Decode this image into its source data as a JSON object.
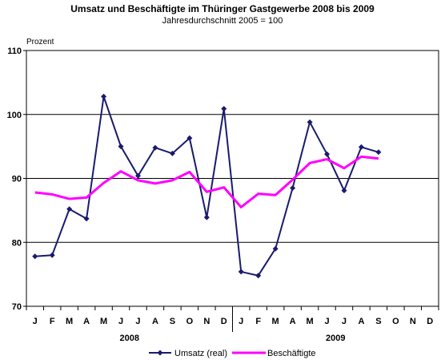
{
  "chart_data": {
    "type": "line",
    "title": "Umsatz und Beschäftigte im Thüringer Gastgewerbe 2008 bis 2009",
    "subtitle": "Jahresdurchschnitt 2005 = 100",
    "ylabel": "Prozent",
    "ylim": [
      70,
      110
    ],
    "yticks": [
      70,
      80,
      90,
      100,
      110
    ],
    "grid": true,
    "legend": "bottom",
    "categories": [
      "J",
      "F",
      "M",
      "A",
      "M",
      "J",
      "J",
      "A",
      "S",
      "O",
      "N",
      "D",
      "J",
      "F",
      "M",
      "A",
      "M",
      "J",
      "J",
      "A",
      "S",
      "O",
      "N",
      "D"
    ],
    "years": [
      "2008",
      "2009"
    ],
    "series": [
      {
        "name": "Umsatz (real)",
        "color": "#1a1a6e",
        "marker": "diamond",
        "values": [
          77.8,
          78.0,
          85.2,
          83.7,
          102.8,
          95.0,
          90.4,
          94.8,
          93.9,
          96.3,
          83.9,
          100.9,
          75.4,
          74.8,
          79.0,
          88.5,
          98.8,
          93.8,
          88.1,
          94.9,
          94.1,
          null,
          null,
          null
        ]
      },
      {
        "name": "Beschäftigte",
        "color": "#ff00ff",
        "marker": "none",
        "values": [
          87.8,
          87.5,
          86.8,
          87.0,
          89.3,
          91.1,
          89.7,
          89.2,
          89.7,
          91.0,
          87.9,
          88.6,
          85.5,
          87.6,
          87.4,
          89.8,
          92.4,
          93.0,
          91.6,
          93.4,
          93.1,
          null,
          null,
          null
        ]
      }
    ]
  }
}
